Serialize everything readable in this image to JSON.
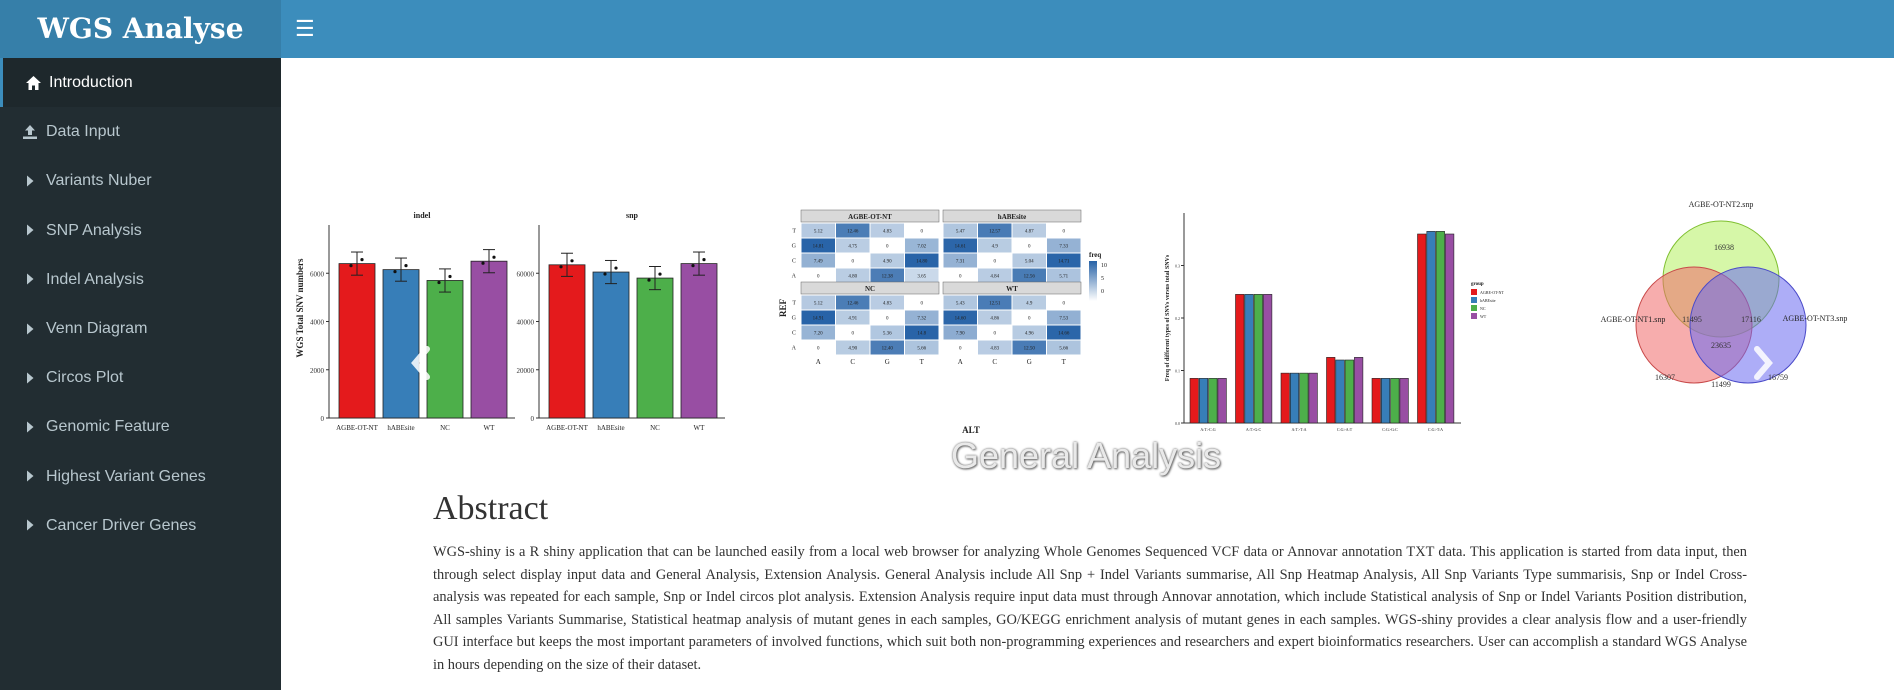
{
  "app": {
    "title": "WGS Analyse"
  },
  "sidebar": {
    "items": [
      {
        "label": "Introduction",
        "icon": "home-icon",
        "active": true
      },
      {
        "label": "Data Input",
        "icon": "upload-icon"
      },
      {
        "label": "Variants Nuber",
        "icon": "caret-right-icon"
      },
      {
        "label": "SNP Analysis",
        "icon": "caret-right-icon"
      },
      {
        "label": "Indel Analysis",
        "icon": "caret-right-icon"
      },
      {
        "label": "Venn Diagram",
        "icon": "caret-right-icon"
      },
      {
        "label": "Circos Plot",
        "icon": "caret-right-icon"
      },
      {
        "label": "Genomic Feature",
        "icon": "caret-right-icon"
      },
      {
        "label": "Highest Variant Genes",
        "icon": "caret-right-icon"
      },
      {
        "label": "Cancer Driver Genes",
        "icon": "caret-right-icon"
      }
    ]
  },
  "carousel": {
    "caption": "General Analysis",
    "bar_panels": {
      "titles": [
        "indel",
        "snp"
      ],
      "ylabel": "WGS Total SNV numbers",
      "categories": [
        "AGBE-OT-NT",
        "hABEsite",
        "NC",
        "WT"
      ],
      "indel_ticks": [
        "0",
        "2000",
        "4000",
        "6000"
      ],
      "snp_ticks": [
        "0",
        "20000",
        "40000",
        "60000"
      ],
      "indel_values": [
        6400,
        6150,
        5700,
        6500
      ],
      "snp_values": [
        63500,
        60500,
        58000,
        64000
      ],
      "colors": [
        "#e41a1c",
        "#377eb8",
        "#4daf4a",
        "#984ea3"
      ]
    },
    "heatmap": {
      "facets": [
        "AGBE-OT-NT",
        "hABEsite",
        "NC",
        "WT"
      ],
      "ylabel": "REF",
      "xlabel": "ALT",
      "rows": [
        "T",
        "G",
        "C",
        "A"
      ],
      "cols": [
        "A",
        "C",
        "G",
        "T"
      ],
      "legend_title": "freq",
      "legend_ticks": [
        "10",
        "5",
        "0"
      ],
      "cells": [
        [
          [
            "5.12",
            "12.46",
            "4.83",
            "0"
          ],
          [
            "14.81",
            "4.75",
            "0",
            "7.02"
          ],
          [
            "7.49",
            "0",
            "4.90",
            "14.80"
          ],
          [
            "0",
            "4.80",
            "12.38",
            "3.65"
          ]
        ],
        [
          [
            "5.47",
            "12.57",
            "4.87",
            "0"
          ],
          [
            "14.61",
            "4.9",
            "0",
            "7.33"
          ],
          [
            "7.31",
            "0",
            "5.04",
            "14.71"
          ],
          [
            "0",
            "4.84",
            "12.56",
            "5.71"
          ]
        ],
        [
          [
            "5.12",
            "12.46",
            "4.83",
            "0"
          ],
          [
            "14.91",
            "4.91",
            "0",
            "7.32"
          ],
          [
            "7.20",
            "0",
            "5.36",
            "14.8"
          ],
          [
            "0",
            "4.90",
            "12.40",
            "5.66"
          ]
        ],
        [
          [
            "5.43",
            "12.51",
            "4.9",
            "0"
          ],
          [
            "14.60",
            "4.86",
            "0",
            "7.53"
          ],
          [
            "7.90",
            "0",
            "4.96",
            "14.66"
          ],
          [
            "0",
            "4.83",
            "12.50",
            "5.66"
          ]
        ]
      ]
    },
    "type_chart": {
      "ylabel": "Freq of different types of SNVs versus total SNVs",
      "ticks": [
        "0.0",
        "0.1",
        "0.2",
        "0.3"
      ],
      "categories": [
        "A:T>C:G",
        "A:T>G:C",
        "A:T>T:A",
        "C:G>A:T",
        "C:G>G:C",
        "C:G>T:A"
      ],
      "values": [
        [
          0.085,
          0.085,
          0.085,
          0.085
        ],
        [
          0.245,
          0.245,
          0.245,
          0.245
        ],
        [
          0.095,
          0.095,
          0.095,
          0.095
        ],
        [
          0.125,
          0.12,
          0.12,
          0.125
        ],
        [
          0.085,
          0.085,
          0.085,
          0.085
        ],
        [
          0.36,
          0.365,
          0.365,
          0.36
        ]
      ],
      "legend_title": "group",
      "groups": [
        "AGBE-OT-NT",
        "hABEsite",
        "NC",
        "WT"
      ]
    },
    "venn": {
      "labels": [
        "AGBE-OT-NT2.snp",
        "AGBE-OT-NT1.snp",
        "AGBE-OT-NT3.snp"
      ],
      "values": {
        "top": "16938",
        "left": "16307",
        "right": "16759",
        "top_left": "11495",
        "top_right": "17116",
        "bottom": "11499",
        "center": "23635"
      }
    }
  },
  "abstract": {
    "heading": "Abstract",
    "text": "WGS-shiny is a R shiny application that can be launched easily from a local web browser for analyzing Whole Genomes Sequenced VCF data or Annovar annotation TXT data. This application is started from data input, then through select display input data and General Analysis, Extension Analysis. General Analysis include All Snp + Indel Variants summarise, All Snp Heatmap Analysis, All Snp Variants Type summarisis, Snp or Indel Cross-analysis was repeated for each sample, Snp or Indel circos plot analysis. Extension Analysis require input data must through Annovar annotation, which include Statistical analysis of Snp or Indel Variants Position distribution, All samples Variants Summarise, Statistical heatmap analysis of mutant genes in each samples, GO/KEGG enrichment analysis of mutant genes in each samples. WGS-shiny provides a clear analysis flow and a user-friendly GUI interface but keeps the most important parameters of involved functions, which suit both non-programming experiences and researchers and expert bioinformatics researchers. User can accomplish a standard WGS Analyse in hours depending on the size of their dataset."
  }
}
